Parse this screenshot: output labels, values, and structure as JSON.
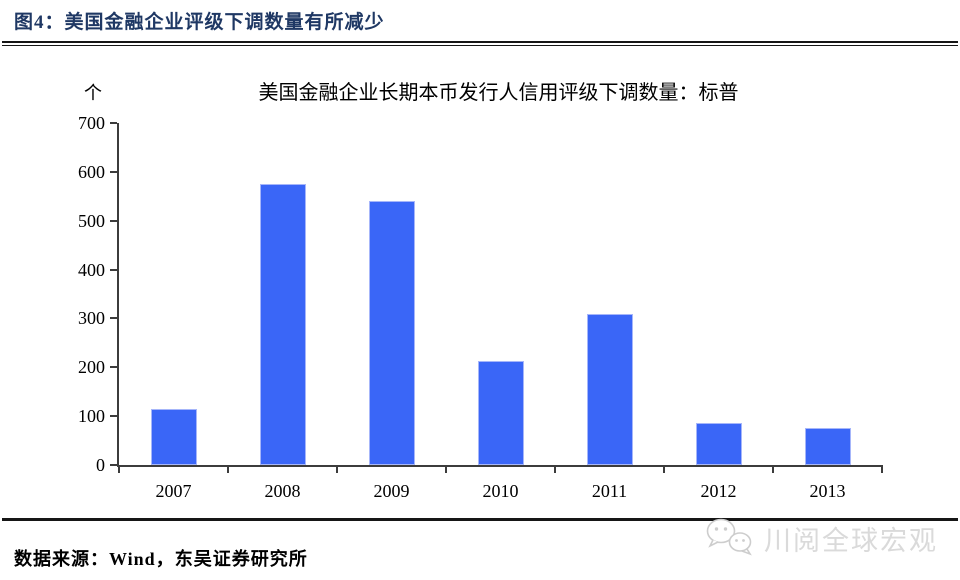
{
  "header": {
    "figure_caption": "图4：美国金融企业评级下调数量有所减少",
    "caption_color": "#1F3864"
  },
  "chart_data": {
    "type": "bar",
    "title": "美国金融企业长期本币发行人信用评级下调数量：标普",
    "unit_label": "个",
    "categories": [
      "2007",
      "2008",
      "2009",
      "2010",
      "2011",
      "2012",
      "2013"
    ],
    "values": [
      115,
      575,
      540,
      213,
      310,
      86,
      76
    ],
    "xlabel": "",
    "ylabel": "个",
    "ylim": [
      0,
      700
    ],
    "yticks": [
      0,
      100,
      200,
      300,
      400,
      500,
      600,
      700
    ],
    "grid": false,
    "legend": "none",
    "bar_color": "#3A66F7",
    "bar_edge_color": "#A6B6FA",
    "axis_color": "#3c3c3c"
  },
  "footer": {
    "source": "数据来源：Wind，东吴证券研究所"
  },
  "watermark": {
    "label": "川阅全球宏观",
    "icon": "wechat-icon",
    "color": "#dadada"
  }
}
